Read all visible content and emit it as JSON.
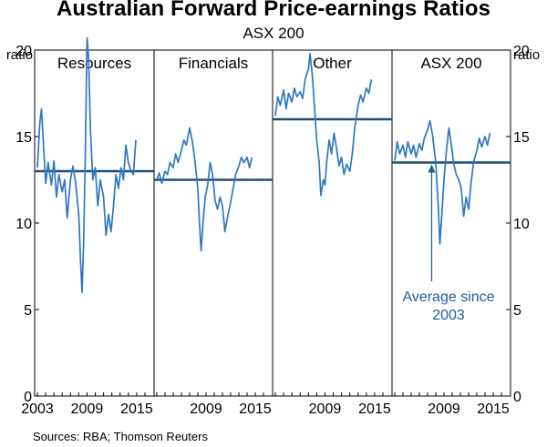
{
  "title": "Australian Forward Price-earnings Ratios",
  "subtitle": "ASX 200",
  "footer": "Sources:   RBA; Thomson Reuters",
  "colors": {
    "series": "#2f77c0",
    "average": "#1f4d7a",
    "axis": "#000000",
    "annotation": "#1f5c99"
  },
  "chart_data": {
    "type": "line",
    "y_axis_label": "ratio",
    "ylim": [
      0,
      20
    ],
    "yticks": [
      0,
      5,
      10,
      15,
      20
    ],
    "xticks": [
      2003,
      2009,
      2015
    ],
    "panels": [
      {
        "name": "Resources",
        "average": 13.0,
        "x_tick_labels": [
          "2003",
          "2009",
          "2015"
        ],
        "series": [
          [
            2003.0,
            13.2
          ],
          [
            2003.3,
            15.8
          ],
          [
            2003.5,
            16.6
          ],
          [
            2003.7,
            14.8
          ],
          [
            2004.0,
            12.3
          ],
          [
            2004.3,
            13.5
          ],
          [
            2004.7,
            12.2
          ],
          [
            2005.0,
            13.6
          ],
          [
            2005.3,
            11.5
          ],
          [
            2005.6,
            12.8
          ],
          [
            2006.0,
            11.8
          ],
          [
            2006.3,
            12.5
          ],
          [
            2006.6,
            10.3
          ],
          [
            2007.0,
            12.5
          ],
          [
            2007.3,
            13.3
          ],
          [
            2007.6,
            12.4
          ],
          [
            2008.0,
            10.5
          ],
          [
            2008.2,
            8.0
          ],
          [
            2008.4,
            6.0
          ],
          [
            2008.6,
            9.0
          ],
          [
            2008.8,
            14.0
          ],
          [
            2009.0,
            20.7
          ],
          [
            2009.2,
            19.5
          ],
          [
            2009.4,
            15.5
          ],
          [
            2009.7,
            12.5
          ],
          [
            2010.0,
            13.2
          ],
          [
            2010.3,
            11.0
          ],
          [
            2010.6,
            12.5
          ],
          [
            2011.0,
            11.5
          ],
          [
            2011.3,
            9.3
          ],
          [
            2011.6,
            10.5
          ],
          [
            2011.9,
            9.5
          ],
          [
            2012.2,
            11.0
          ],
          [
            2012.5,
            12.8
          ],
          [
            2012.8,
            12.0
          ],
          [
            2013.1,
            13.2
          ],
          [
            2013.4,
            12.5
          ],
          [
            2013.7,
            14.5
          ],
          [
            2014.0,
            13.5
          ],
          [
            2014.3,
            13.0
          ],
          [
            2014.6,
            12.8
          ],
          [
            2014.9,
            14.8
          ]
        ]
      },
      {
        "name": "Financials",
        "average": 12.5,
        "x_tick_labels": [
          "2009",
          "2015"
        ],
        "series": [
          [
            2003.0,
            12.5
          ],
          [
            2003.3,
            12.9
          ],
          [
            2003.6,
            12.3
          ],
          [
            2004.0,
            13.0
          ],
          [
            2004.3,
            12.8
          ],
          [
            2004.6,
            13.5
          ],
          [
            2005.0,
            13.2
          ],
          [
            2005.3,
            14.0
          ],
          [
            2005.6,
            13.5
          ],
          [
            2006.0,
            14.2
          ],
          [
            2006.3,
            14.8
          ],
          [
            2006.6,
            14.5
          ],
          [
            2007.0,
            15.5
          ],
          [
            2007.3,
            14.8
          ],
          [
            2007.6,
            13.8
          ],
          [
            2008.0,
            12.0
          ],
          [
            2008.2,
            10.0
          ],
          [
            2008.4,
            8.4
          ],
          [
            2008.6,
            9.8
          ],
          [
            2008.9,
            11.5
          ],
          [
            2009.2,
            12.2
          ],
          [
            2009.5,
            13.5
          ],
          [
            2009.8,
            12.8
          ],
          [
            2010.1,
            11.3
          ],
          [
            2010.4,
            10.8
          ],
          [
            2010.7,
            11.5
          ],
          [
            2011.0,
            11.0
          ],
          [
            2011.3,
            9.5
          ],
          [
            2011.6,
            10.3
          ],
          [
            2012.0,
            11.2
          ],
          [
            2012.3,
            12.0
          ],
          [
            2012.6,
            12.8
          ],
          [
            2013.0,
            13.3
          ],
          [
            2013.3,
            13.8
          ],
          [
            2013.6,
            13.5
          ],
          [
            2014.0,
            13.8
          ],
          [
            2014.3,
            13.2
          ],
          [
            2014.6,
            13.8
          ]
        ]
      },
      {
        "name": "Other",
        "average": 16.0,
        "x_tick_labels": [
          "2009",
          "2015"
        ],
        "series": [
          [
            2003.0,
            16.2
          ],
          [
            2003.3,
            17.3
          ],
          [
            2003.6,
            16.8
          ],
          [
            2004.0,
            17.7
          ],
          [
            2004.3,
            16.6
          ],
          [
            2004.6,
            17.5
          ],
          [
            2005.0,
            17.0
          ],
          [
            2005.3,
            17.8
          ],
          [
            2005.6,
            17.3
          ],
          [
            2006.0,
            17.6
          ],
          [
            2006.3,
            17.2
          ],
          [
            2006.6,
            18.3
          ],
          [
            2007.0,
            18.9
          ],
          [
            2007.2,
            19.8
          ],
          [
            2007.5,
            18.4
          ],
          [
            2007.8,
            16.2
          ],
          [
            2008.0,
            14.8
          ],
          [
            2008.3,
            13.5
          ],
          [
            2008.5,
            11.6
          ],
          [
            2008.8,
            12.5
          ],
          [
            2009.0,
            12.2
          ],
          [
            2009.2,
            13.5
          ],
          [
            2009.5,
            14.8
          ],
          [
            2009.8,
            14.0
          ],
          [
            2010.1,
            15.2
          ],
          [
            2010.4,
            14.3
          ],
          [
            2010.7,
            13.3
          ],
          [
            2011.0,
            13.8
          ],
          [
            2011.3,
            12.8
          ],
          [
            2011.6,
            13.4
          ],
          [
            2012.0,
            13.0
          ],
          [
            2012.3,
            14.0
          ],
          [
            2012.6,
            15.5
          ],
          [
            2013.0,
            16.8
          ],
          [
            2013.3,
            17.4
          ],
          [
            2013.6,
            17.0
          ],
          [
            2014.0,
            17.8
          ],
          [
            2014.3,
            17.5
          ],
          [
            2014.6,
            18.3
          ]
        ]
      },
      {
        "name": "ASX 200",
        "average": 13.5,
        "x_tick_labels": [
          "2009",
          "2015"
        ],
        "annotation": "Average since\n2003",
        "series": [
          [
            2003.0,
            13.6
          ],
          [
            2003.3,
            14.7
          ],
          [
            2003.6,
            14.0
          ],
          [
            2004.0,
            14.5
          ],
          [
            2004.3,
            13.8
          ],
          [
            2004.6,
            14.7
          ],
          [
            2005.0,
            14.0
          ],
          [
            2005.3,
            14.5
          ],
          [
            2005.6,
            13.8
          ],
          [
            2006.0,
            14.6
          ],
          [
            2006.3,
            14.2
          ],
          [
            2006.6,
            14.9
          ],
          [
            2007.0,
            15.4
          ],
          [
            2007.3,
            15.9
          ],
          [
            2007.6,
            15.1
          ],
          [
            2008.0,
            13.5
          ],
          [
            2008.3,
            11.0
          ],
          [
            2008.5,
            8.8
          ],
          [
            2008.7,
            10.2
          ],
          [
            2009.0,
            12.5
          ],
          [
            2009.3,
            14.2
          ],
          [
            2009.6,
            15.5
          ],
          [
            2009.9,
            14.5
          ],
          [
            2010.2,
            13.4
          ],
          [
            2010.5,
            12.8
          ],
          [
            2010.8,
            12.5
          ],
          [
            2011.1,
            12.0
          ],
          [
            2011.4,
            10.4
          ],
          [
            2011.7,
            11.5
          ],
          [
            2012.0,
            10.8
          ],
          [
            2012.3,
            12.3
          ],
          [
            2012.6,
            13.5
          ],
          [
            2013.0,
            14.2
          ],
          [
            2013.3,
            14.9
          ],
          [
            2013.6,
            14.4
          ],
          [
            2014.0,
            15.0
          ],
          [
            2014.3,
            14.5
          ],
          [
            2014.6,
            15.2
          ]
        ]
      }
    ]
  }
}
